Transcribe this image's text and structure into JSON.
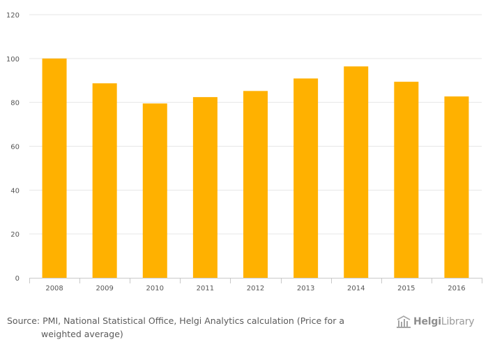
{
  "chart_data": {
    "type": "bar",
    "categories": [
      "2008",
      "2009",
      "2010",
      "2011",
      "2012",
      "2013",
      "2014",
      "2015",
      "2016"
    ],
    "values": [
      100,
      88.7,
      79.5,
      82.4,
      85.2,
      90.9,
      96.4,
      89.4,
      82.7
    ],
    "title": "",
    "xlabel": "",
    "ylabel": "",
    "ylim": [
      0,
      120
    ],
    "yticks": [
      "0",
      "20",
      "40",
      "60",
      "80",
      "100",
      "120"
    ],
    "grid": true,
    "legend": "none",
    "bar_color": "#FFB100",
    "grid_color": "#e6e6e6"
  },
  "footer": {
    "source_line1": "Source: PMI, National Statistical Office, Helgi Analytics calculation (Price for a",
    "source_line2": "weighted average)",
    "logo_text_bold": "Helgi",
    "logo_text_regular": "Library",
    "logo_icon": "helgi-building-icon"
  }
}
